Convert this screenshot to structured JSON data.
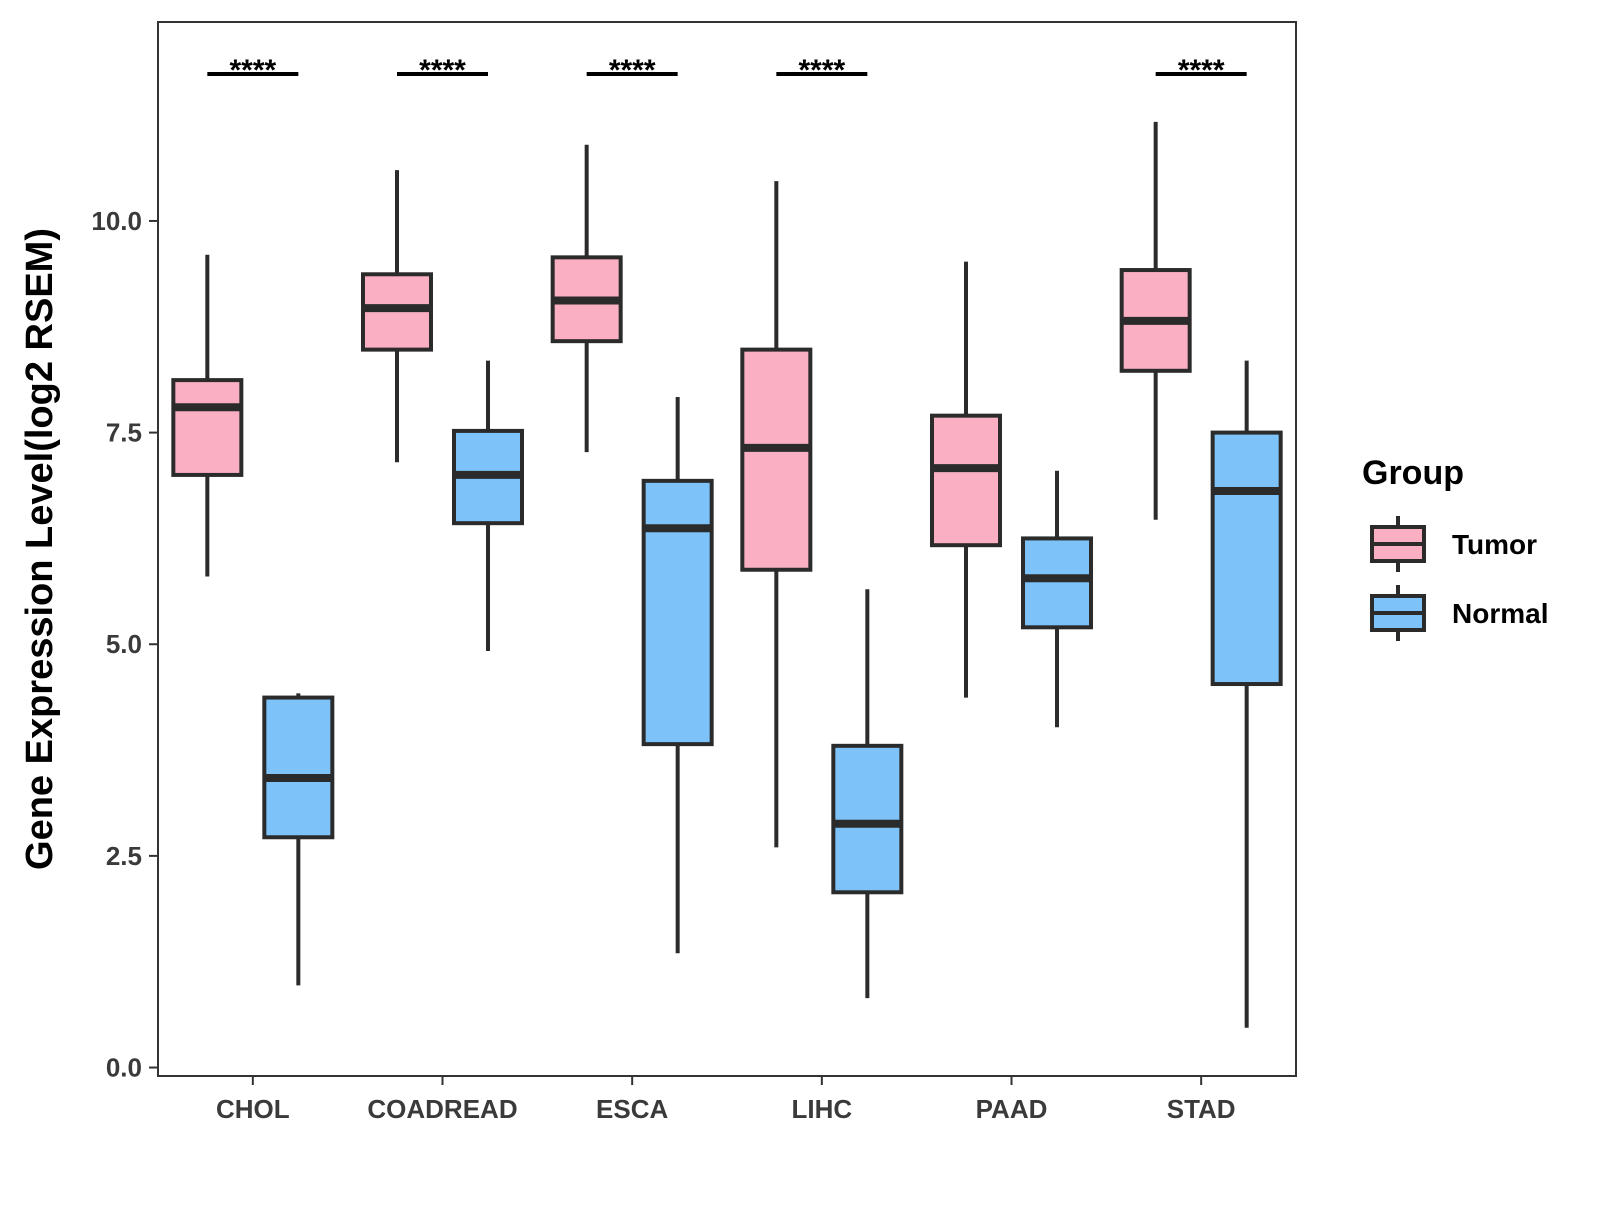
{
  "chart_data": {
    "type": "boxplot",
    "title": "",
    "xlabel": "",
    "ylabel": "Gene Expression Level(log2 RSEM)",
    "ylim": [
      -0.1,
      12.35
    ],
    "yticks": [
      0.0,
      2.5,
      5.0,
      7.5,
      10.0
    ],
    "ytick_labels": [
      "0.0",
      "2.5",
      "5.0",
      "7.5",
      "10.0"
    ],
    "grid": false,
    "categories": [
      "CHOL",
      "COADREAD",
      "ESCA",
      "LIHC",
      "PAAD",
      "STAD"
    ],
    "legend": {
      "title": "Group",
      "position": "right",
      "items": [
        {
          "name": "Tumor",
          "color": "#FAB0C2"
        },
        {
          "name": "Normal",
          "color": "#7DC3F9"
        }
      ]
    },
    "series": [
      {
        "name": "Tumor",
        "color": "#FAB0C2",
        "boxes": [
          {
            "category": "CHOL",
            "whisker_low": 5.8,
            "q1": 7.0,
            "median": 7.8,
            "q3": 8.12,
            "whisker_high": 9.6
          },
          {
            "category": "COADREAD",
            "whisker_low": 7.15,
            "q1": 8.48,
            "median": 8.97,
            "q3": 9.37,
            "whisker_high": 10.6
          },
          {
            "category": "ESCA",
            "whisker_low": 7.27,
            "q1": 8.58,
            "median": 9.06,
            "q3": 9.57,
            "whisker_high": 10.9
          },
          {
            "category": "LIHC",
            "whisker_low": 2.6,
            "q1": 5.88,
            "median": 7.32,
            "q3": 8.48,
            "whisker_high": 10.47
          },
          {
            "category": "PAAD",
            "whisker_low": 4.37,
            "q1": 6.17,
            "median": 7.08,
            "q3": 7.7,
            "whisker_high": 9.52
          },
          {
            "category": "STAD",
            "whisker_low": 6.47,
            "q1": 8.23,
            "median": 8.82,
            "q3": 9.42,
            "whisker_high": 11.17
          }
        ]
      },
      {
        "name": "Normal",
        "color": "#7DC3F9",
        "boxes": [
          {
            "category": "CHOL",
            "whisker_low": 0.97,
            "q1": 2.72,
            "median": 3.42,
            "q3": 4.37,
            "whisker_high": 4.42
          },
          {
            "category": "COADREAD",
            "whisker_low": 4.92,
            "q1": 6.43,
            "median": 7.0,
            "q3": 7.52,
            "whisker_high": 8.35
          },
          {
            "category": "ESCA",
            "whisker_low": 1.35,
            "q1": 3.82,
            "median": 6.37,
            "q3": 6.93,
            "whisker_high": 7.92
          },
          {
            "category": "LIHC",
            "whisker_low": 0.82,
            "q1": 2.07,
            "median": 2.88,
            "q3": 3.8,
            "whisker_high": 5.65
          },
          {
            "category": "PAAD",
            "whisker_low": 4.02,
            "q1": 5.2,
            "median": 5.78,
            "q3": 6.25,
            "whisker_high": 7.05
          },
          {
            "category": "STAD",
            "whisker_low": 0.47,
            "q1": 4.53,
            "median": 6.81,
            "q3": 7.5,
            "whisker_high": 8.35
          }
        ]
      }
    ],
    "annotations": [
      {
        "category": "CHOL",
        "label": "****"
      },
      {
        "category": "COADREAD",
        "label": "****"
      },
      {
        "category": "ESCA",
        "label": "****"
      },
      {
        "category": "LIHC",
        "label": "****"
      },
      {
        "category": "PAAD",
        "label": ""
      },
      {
        "category": "STAD",
        "label": "****"
      }
    ]
  }
}
